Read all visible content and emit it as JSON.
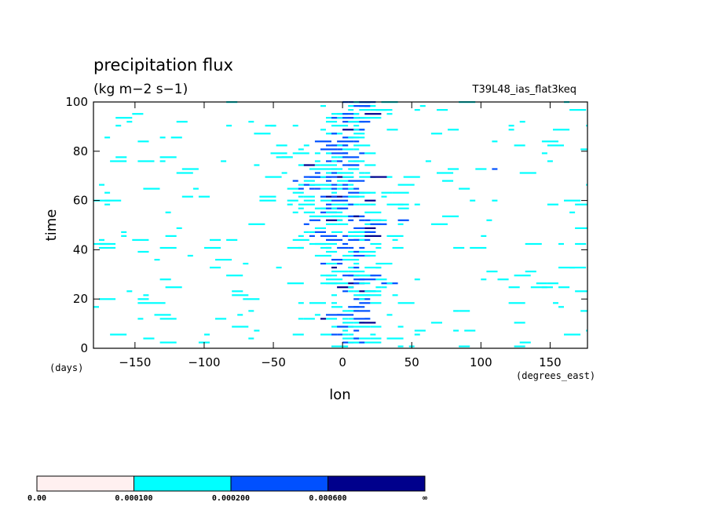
{
  "chart_data": {
    "type": "heatmap",
    "title": "precipitation flux",
    "units": "(kg m−2 s−1)",
    "run_label": "T39L48_ias_flat3keq",
    "xlabel": "lon",
    "ylabel": "time",
    "x_units": "(degrees_east)",
    "y_units": "(days)",
    "xlim": [
      -180,
      177
    ],
    "ylim": [
      0,
      100
    ],
    "x_ticks": [
      -150,
      -100,
      -50,
      0,
      50,
      100,
      150
    ],
    "y_ticks": [
      0,
      20,
      40,
      60,
      80,
      100
    ],
    "x_tick_labels": [
      "−150",
      "−100",
      "−50",
      "0",
      "50",
      "100",
      "150"
    ],
    "y_tick_labels": [
      "0",
      "20",
      "40",
      "60",
      "80",
      "100"
    ],
    "grid": false,
    "colorbar": {
      "levels": [
        0.0,
        0.0001,
        0.0002,
        0.0006
      ],
      "level_labels": [
        "0.00",
        "0.000100",
        "0.000200",
        "0.000600",
        "∞"
      ],
      "colors": [
        "#fff0f0",
        "#00ffff",
        "#0050ff",
        "#00008c"
      ]
    }
  }
}
